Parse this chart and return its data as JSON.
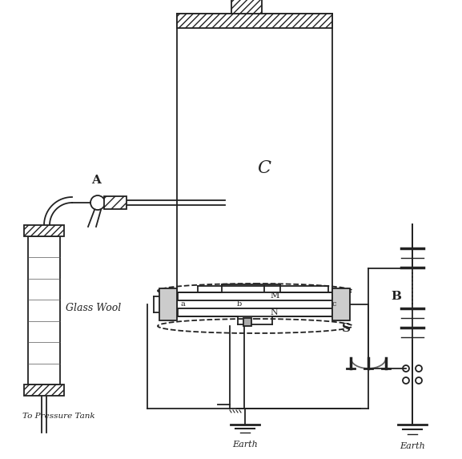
{
  "label_A": "A",
  "label_C": "C",
  "label_M": "M",
  "label_N": "N",
  "label_B": "B",
  "label_S": "S",
  "label_a": "a",
  "label_b": "b",
  "label_c": "c",
  "label_GlassWool": "Glass Wool",
  "label_PressureTank": "To Pressure Tank",
  "label_Earth1": "Earth",
  "label_Earth2": "Earth",
  "figsize": [
    5.77,
    5.73
  ],
  "dpi": 100,
  "lc": "#222222",
  "lw": 1.3
}
